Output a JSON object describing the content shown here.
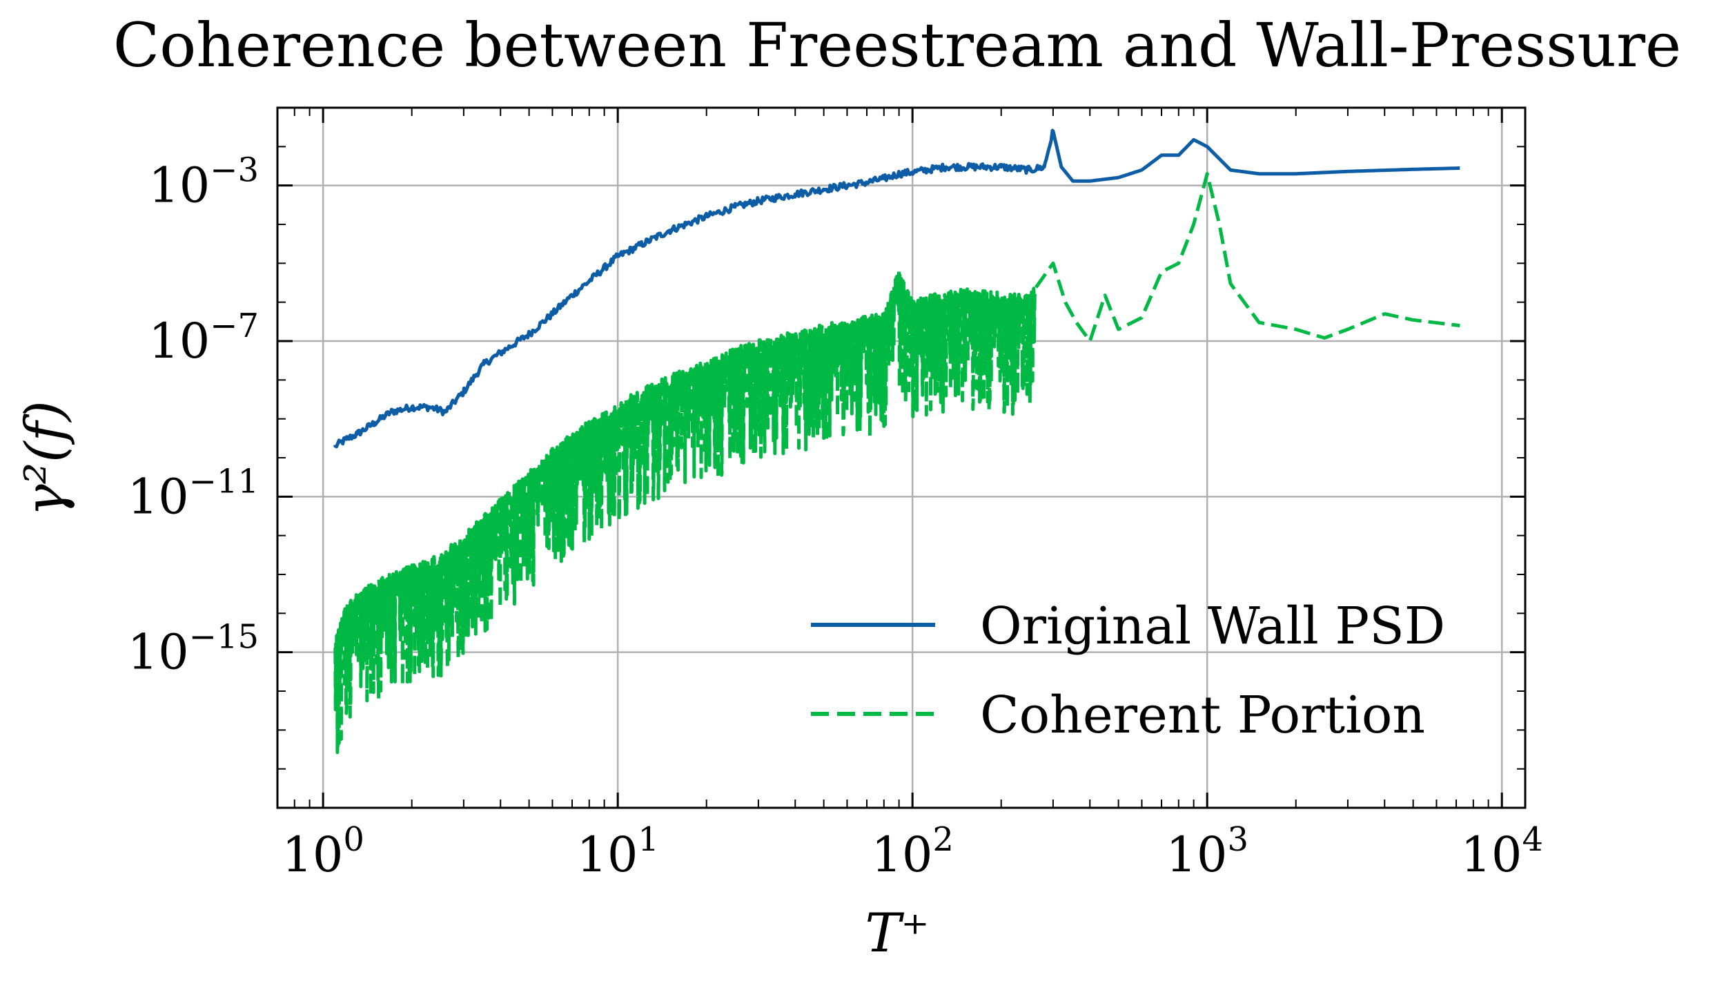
{
  "chart_data": {
    "type": "line",
    "title": "Coherence between Freestream and Wall-Pressure",
    "xlabel": "T⁺",
    "ylabel": "γ²(f)",
    "xscale": "log",
    "yscale": "log",
    "xlim": [
      0.7,
      12000
    ],
    "ylim": [
      1e-19,
      0.1
    ],
    "grid": true,
    "legend_position": "lower-right",
    "x_ticks": [
      {
        "value": 1,
        "base": "10",
        "exp": "0"
      },
      {
        "value": 10,
        "base": "10",
        "exp": "1"
      },
      {
        "value": 100,
        "base": "10",
        "exp": "2"
      },
      {
        "value": 1000,
        "base": "10",
        "exp": "3"
      },
      {
        "value": 10000,
        "base": "10",
        "exp": "4"
      }
    ],
    "y_ticks": [
      {
        "value": 1e-15,
        "base": "10",
        "exp": "−15"
      },
      {
        "value": 1e-11,
        "base": "10",
        "exp": "−11"
      },
      {
        "value": 1e-07,
        "base": "10",
        "exp": "−7"
      },
      {
        "value": 0.001,
        "base": "10",
        "exp": "−3"
      }
    ],
    "series": [
      {
        "name": "Original Wall PSD",
        "color": "#0c5da5",
        "dash": "solid",
        "x": [
          1.1,
          1.2,
          1.3,
          1.5,
          1.7,
          2.0,
          2.3,
          2.6,
          3.0,
          3.5,
          4.0,
          5.0,
          6.0,
          7.0,
          8.0,
          10,
          12,
          15,
          20,
          25,
          30,
          40,
          50,
          60,
          70,
          80,
          90,
          100,
          130,
          160,
          200,
          250,
          280,
          300,
          320,
          350,
          400,
          500,
          600,
          700,
          800,
          900,
          1000,
          1200,
          1500,
          2000,
          3000,
          5000,
          7200
        ],
        "y": [
          2e-10,
          3e-10,
          4e-10,
          8e-10,
          1.5e-09,
          2e-09,
          2e-09,
          1.5e-09,
          5e-09,
          2.5e-08,
          5e-08,
          1.5e-07,
          5e-07,
          1.5e-06,
          3.5e-06,
          1.5e-05,
          3e-05,
          7e-05,
          0.00016,
          0.00028,
          0.0004,
          0.0006,
          0.0008,
          0.001,
          0.0012,
          0.0015,
          0.002,
          0.0022,
          0.003,
          0.003,
          0.003,
          0.0025,
          0.003,
          0.025,
          0.003,
          0.0013,
          0.0013,
          0.0016,
          0.0025,
          0.006,
          0.006,
          0.015,
          0.01,
          0.0025,
          0.002,
          0.002,
          0.0023,
          0.0026,
          0.0028
        ]
      },
      {
        "name": "Coherent Portion",
        "color": "#00b945",
        "dash": "dashed",
        "x": [
          1.1,
          1.2,
          1.3,
          1.5,
          1.7,
          2.0,
          2.5,
          3.0,
          3.5,
          4.0,
          5.0,
          6.0,
          7.0,
          8.0,
          10,
          12,
          15,
          20,
          25,
          30,
          40,
          50,
          60,
          70,
          80,
          90,
          100,
          120,
          150,
          200,
          250,
          300,
          330,
          360,
          400,
          450,
          500,
          600,
          700,
          800,
          900,
          1000,
          1100,
          1200,
          1500,
          2000,
          2500,
          3000,
          4000,
          5000,
          7200
        ],
        "y": [
          1e-15,
          8e-15,
          1.5e-14,
          3e-14,
          5e-14,
          8e-14,
          1.5e-13,
          5e-13,
          1.5e-12,
          4e-12,
          2e-11,
          8e-11,
          2e-10,
          4e-10,
          1e-09,
          3e-09,
          6e-09,
          1.5e-08,
          3e-08,
          5e-08,
          8e-08,
          1.2e-07,
          1.6e-07,
          2e-07,
          2.5e-07,
          3.5e-06,
          5e-07,
          8e-07,
          1e-06,
          8e-07,
          7e-07,
          1e-05,
          1e-06,
          3e-07,
          1e-07,
          1.5e-06,
          2e-07,
          4e-07,
          6e-06,
          1e-05,
          0.0001,
          0.002,
          0.0001,
          3e-06,
          3e-07,
          2e-07,
          1.2e-07,
          2e-07,
          5e-07,
          3.5e-07,
          2.5e-07
        ],
        "noise": {
          "x_start": 1.1,
          "x_end": 260,
          "low_decades": 2.8
        }
      }
    ]
  }
}
